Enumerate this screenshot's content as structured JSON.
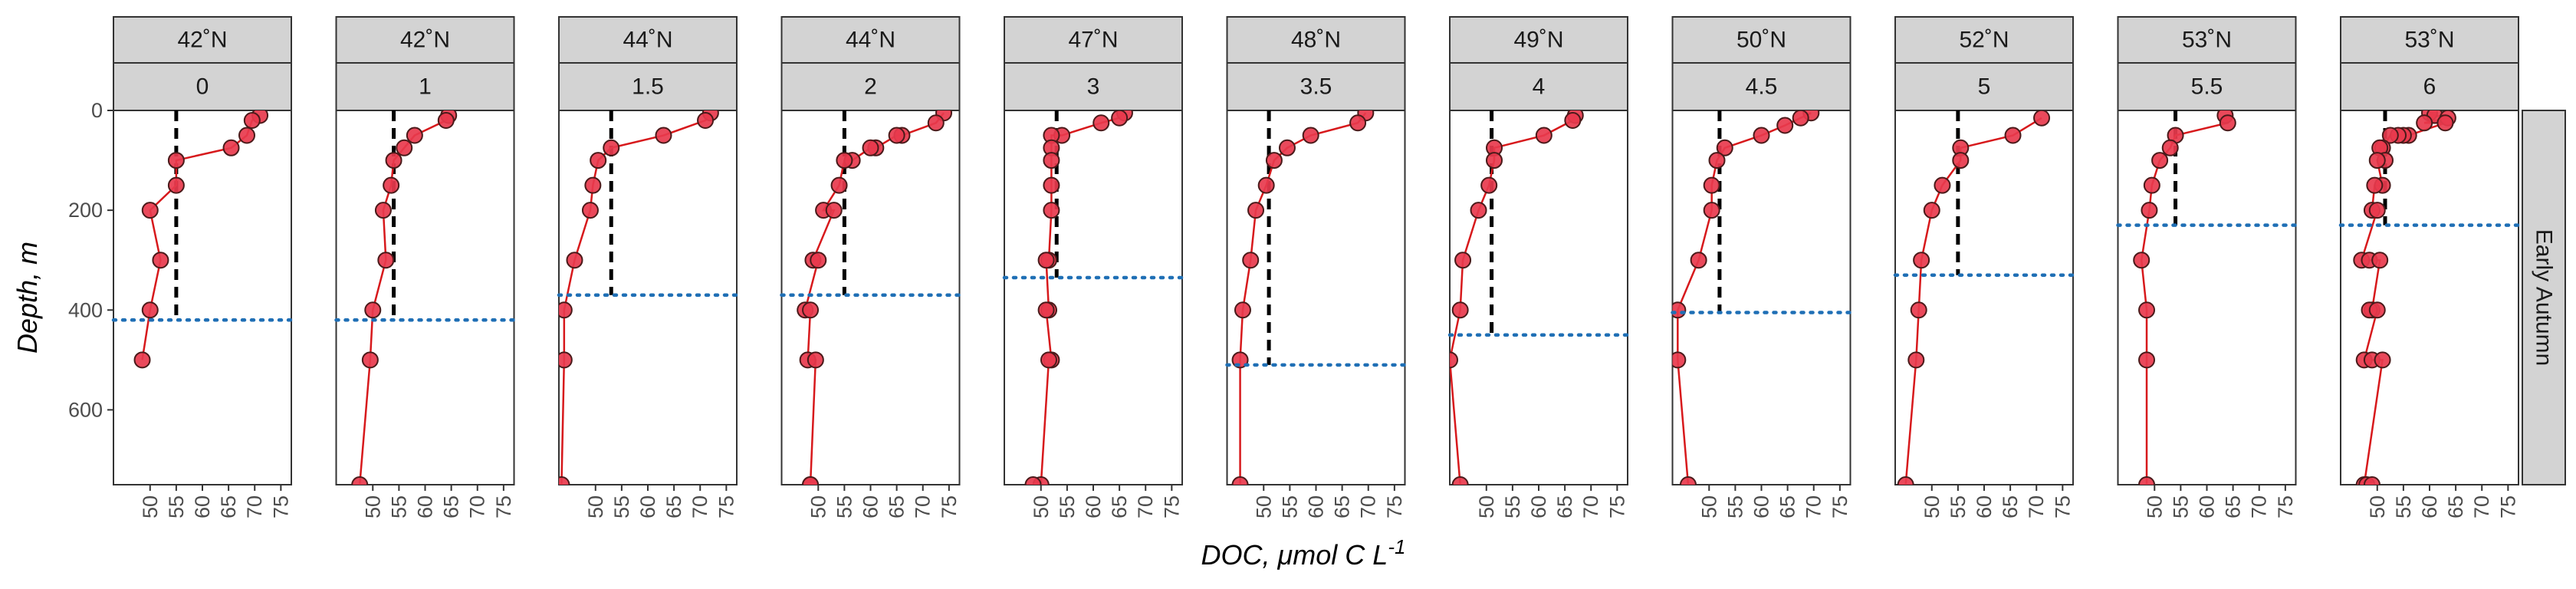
{
  "chart_data": {
    "type": "line",
    "xlabel": "DOC, μmol C L",
    "xlabel_superscript": "-1",
    "ylabel": "Depth, m",
    "row_strip": "Early Autumn",
    "xlim": [
      43,
      77
    ],
    "ylim": [
      0,
      750
    ],
    "y_reversed": true,
    "xticks": [
      50,
      55,
      60,
      65,
      70,
      75
    ],
    "yticks": [
      0,
      200,
      400,
      600
    ],
    "colors": {
      "point_fill": "#e8394d",
      "point_stroke": "#4a1a1a",
      "line": "#d7191c",
      "dashed": "#000000",
      "dotted": "#1f6fb5",
      "strip": "#d3d3d3"
    },
    "panels": [
      {
        "lat": "42˚N",
        "lon": "0",
        "mean_doc": 55,
        "mld": 420,
        "points": [
          [
            71,
            10
          ],
          [
            69.5,
            20
          ],
          [
            68.5,
            50
          ],
          [
            65.5,
            75
          ],
          [
            55,
            100
          ],
          [
            55,
            150
          ],
          [
            50,
            200
          ],
          [
            52,
            300
          ],
          [
            50,
            400
          ],
          [
            48.5,
            500
          ]
        ]
      },
      {
        "lat": "42˚N",
        "lon": "1",
        "mean_doc": 54,
        "mld": 420,
        "points": [
          [
            64.5,
            10
          ],
          [
            64,
            20
          ],
          [
            58,
            50
          ],
          [
            56,
            75
          ],
          [
            54,
            100
          ],
          [
            53.5,
            150
          ],
          [
            52,
            200
          ],
          [
            52.5,
            300
          ],
          [
            50,
            400
          ],
          [
            49.5,
            500
          ],
          [
            47.5,
            750
          ]
        ]
      },
      {
        "lat": "44˚N",
        "lon": "1.5",
        "mean_doc": 53,
        "mld": 370,
        "points": [
          [
            72,
            5
          ],
          [
            71,
            20
          ],
          [
            63,
            50
          ],
          [
            53,
            75
          ],
          [
            50.5,
            100
          ],
          [
            49.5,
            150
          ],
          [
            49,
            200
          ],
          [
            46,
            300
          ],
          [
            44,
            400
          ],
          [
            44,
            500
          ],
          [
            43.5,
            750
          ]
        ]
      },
      {
        "lat": "44˚N",
        "lon": "2",
        "mean_doc": 55,
        "mld": 370,
        "points": [
          [
            74,
            5
          ],
          [
            72.5,
            25
          ],
          [
            66,
            50
          ],
          [
            65,
            50
          ],
          [
            61,
            75
          ],
          [
            60,
            75
          ],
          [
            56.5,
            100
          ],
          [
            55,
            100
          ],
          [
            54,
            150
          ],
          [
            51,
            200
          ],
          [
            53,
            200
          ],
          [
            49,
            300
          ],
          [
            50,
            300
          ],
          [
            47.5,
            400
          ],
          [
            48.5,
            400
          ],
          [
            48,
            500
          ],
          [
            49.5,
            500
          ],
          [
            48.5,
            750
          ],
          [
            48.5,
            750
          ]
        ]
      },
      {
        "lat": "47˚N",
        "lon": "3",
        "mean_doc": 53,
        "mld": 335,
        "points": [
          [
            66,
            5
          ],
          [
            65,
            15
          ],
          [
            61.5,
            25
          ],
          [
            54,
            50
          ],
          [
            52,
            50
          ],
          [
            52,
            75
          ],
          [
            52,
            100
          ],
          [
            52,
            150
          ],
          [
            52,
            200
          ],
          [
            51.5,
            300
          ],
          [
            51,
            300
          ],
          [
            51.5,
            400
          ],
          [
            51,
            400
          ],
          [
            52,
            500
          ],
          [
            51.5,
            500
          ],
          [
            50,
            750
          ],
          [
            48.5,
            750
          ]
        ]
      },
      {
        "lat": "48˚N",
        "lon": "3.5",
        "mean_doc": 51,
        "mld": 510,
        "points": [
          [
            69.5,
            5
          ],
          [
            68,
            25
          ],
          [
            59,
            50
          ],
          [
            54.5,
            75
          ],
          [
            52,
            100
          ],
          [
            50.5,
            150
          ],
          [
            48.5,
            200
          ],
          [
            47.5,
            300
          ],
          [
            46,
            400
          ],
          [
            45.5,
            500
          ],
          [
            45.5,
            750
          ]
        ]
      },
      {
        "lat": "49˚N",
        "lon": "4",
        "mean_doc": 51,
        "mld": 450,
        "points": [
          [
            67,
            10
          ],
          [
            66.5,
            20
          ],
          [
            61,
            50
          ],
          [
            51.5,
            75
          ],
          [
            51.5,
            100
          ],
          [
            50.5,
            150
          ],
          [
            48.5,
            200
          ],
          [
            45.5,
            300
          ],
          [
            45,
            400
          ],
          [
            43,
            500
          ],
          [
            45,
            750
          ]
        ]
      },
      {
        "lat": "50˚N",
        "lon": "4.5",
        "mean_doc": 52,
        "mld": 405,
        "points": [
          [
            69.5,
            5
          ],
          [
            67.5,
            15
          ],
          [
            64.5,
            30
          ],
          [
            60,
            50
          ],
          [
            53,
            75
          ],
          [
            51.5,
            100
          ],
          [
            50.5,
            150
          ],
          [
            50.5,
            200
          ],
          [
            48,
            300
          ],
          [
            44,
            400
          ],
          [
            44,
            500
          ],
          [
            46,
            750
          ]
        ]
      },
      {
        "lat": "52˚N",
        "lon": "5",
        "mean_doc": 55,
        "mld": 330,
        "points": [
          [
            71,
            15
          ],
          [
            65.5,
            50
          ],
          [
            55.5,
            75
          ],
          [
            55.5,
            100
          ],
          [
            52,
            150
          ],
          [
            50,
            200
          ],
          [
            48,
            300
          ],
          [
            47.5,
            400
          ],
          [
            47,
            500
          ],
          [
            45,
            750
          ]
        ]
      },
      {
        "lat": "53˚N",
        "lon": "5.5",
        "mean_doc": 54,
        "mld": 230,
        "points": [
          [
            63.5,
            10
          ],
          [
            64,
            25
          ],
          [
            54,
            50
          ],
          [
            53,
            75
          ],
          [
            51,
            100
          ],
          [
            49.5,
            150
          ],
          [
            49,
            200
          ],
          [
            47.5,
            300
          ],
          [
            48.5,
            400
          ],
          [
            48.5,
            500
          ],
          [
            48.5,
            750
          ]
        ]
      },
      {
        "lat": "53˚N",
        "lon": "6",
        "mean_doc": 51.5,
        "mld": 230,
        "points": [
          [
            60,
            5
          ],
          [
            61,
            10
          ],
          [
            63.5,
            15
          ],
          [
            59,
            25
          ],
          [
            63,
            25
          ],
          [
            56,
            50
          ],
          [
            55,
            50
          ],
          [
            54,
            50
          ],
          [
            52.5,
            50
          ],
          [
            51,
            75
          ],
          [
            50.5,
            75
          ],
          [
            51.5,
            100
          ],
          [
            50,
            100
          ],
          [
            51,
            150
          ],
          [
            49.5,
            150
          ],
          [
            49,
            200
          ],
          [
            50,
            200
          ],
          [
            47,
            300
          ],
          [
            48.5,
            300
          ],
          [
            50.5,
            300
          ],
          [
            49,
            400
          ],
          [
            48.5,
            400
          ],
          [
            50,
            400
          ],
          [
            47.5,
            500
          ],
          [
            49,
            500
          ],
          [
            51,
            500
          ],
          [
            47.5,
            750
          ],
          [
            48,
            750
          ],
          [
            49,
            750
          ]
        ]
      }
    ]
  }
}
